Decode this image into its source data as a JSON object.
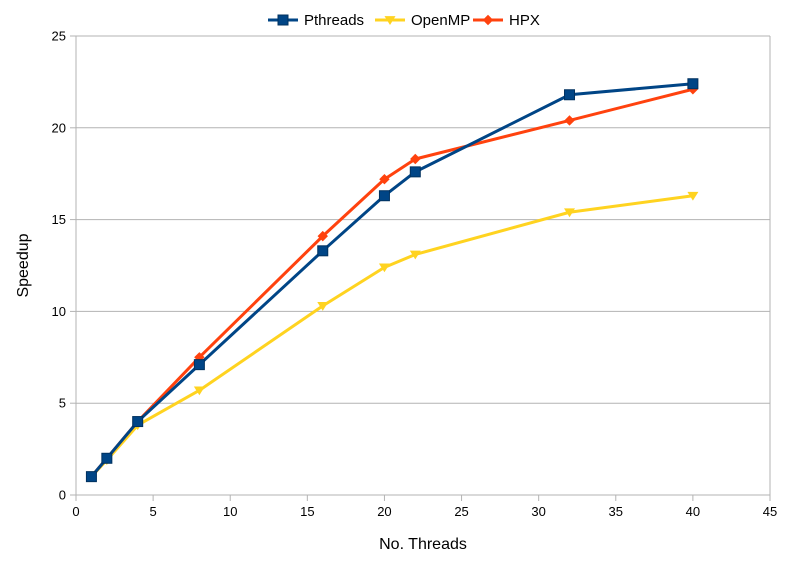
{
  "chart_data": {
    "type": "line",
    "title": "",
    "xlabel": "No. Threads",
    "ylabel": "Speedup",
    "xlim": [
      0,
      45
    ],
    "ylim": [
      0,
      25
    ],
    "xticks": [
      0,
      5,
      10,
      15,
      20,
      25,
      30,
      35,
      40,
      45
    ],
    "yticks": [
      0,
      5,
      10,
      15,
      20,
      25
    ],
    "grid": "horizontal",
    "legend_position": "top",
    "series": [
      {
        "name": "Pthreads",
        "color": "#004586",
        "marker": "square",
        "x": [
          1,
          2,
          4,
          8,
          16,
          20,
          22,
          32,
          40
        ],
        "y": [
          1.0,
          2.0,
          4.0,
          7.1,
          13.3,
          16.3,
          17.6,
          21.8,
          22.4
        ]
      },
      {
        "name": "OpenMP",
        "color": "#ffd320",
        "marker": "triangle-down",
        "x": [
          1,
          2,
          4,
          8,
          16,
          20,
          22,
          32,
          40
        ],
        "y": [
          1.0,
          1.9,
          3.8,
          5.7,
          10.3,
          12.4,
          13.1,
          15.4,
          16.3
        ]
      },
      {
        "name": "HPX",
        "color": "#ff420e",
        "marker": "diamond",
        "x": [
          1,
          2,
          4,
          8,
          16,
          20,
          22,
          32,
          40
        ],
        "y": [
          1.0,
          2.0,
          4.0,
          7.5,
          14.1,
          17.2,
          18.3,
          20.4,
          22.1
        ]
      }
    ]
  }
}
